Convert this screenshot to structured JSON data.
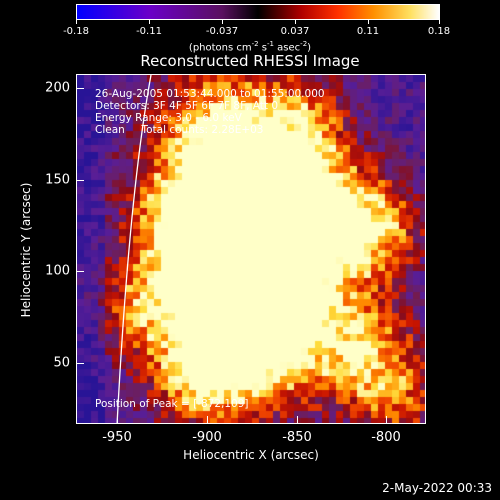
{
  "colorbar": {
    "ticks": [
      "-0.18",
      "-0.11",
      "-0.037",
      "0.037",
      "0.11",
      "0.18"
    ],
    "units_main": "(photons cm",
    "units_exp1": "-2",
    "units_mid1": " s",
    "units_exp2": "-1",
    "units_mid2": " asec",
    "units_exp3": "-2",
    "units_end": ")",
    "colors": [
      "#0000ff",
      "#6a00c8",
      "#8a1a8a",
      "#000000",
      "#b00000",
      "#ff3000",
      "#ff9000",
      "#ffe060",
      "#ffffff"
    ]
  },
  "title": "Reconstructed RHESSI Image",
  "info": {
    "line1": "26-Aug-2005 01:53:44.000 to 01:55:00.000",
    "line2": "Detectors: 3F 4F 5F 6F 7F 8F, Att 0",
    "line3": "Energy Range: 3.0 - 6.0 keV",
    "line4": "Clean     Total counts: 2.28E+03",
    "peak": "Position of Peak = [-872,109]"
  },
  "axes": {
    "x_label": "Heliocentric X (arcsec)",
    "y_label": "Heliocentric Y (arcsec)",
    "x_ticks": [
      "-950",
      "-900",
      "-850",
      "-800"
    ],
    "y_ticks": [
      "200",
      "150",
      "100",
      "50"
    ],
    "x_range": [
      -970,
      -775
    ],
    "y_range": [
      15,
      210
    ]
  },
  "datestamp": "2-May-2022 00:33"
}
